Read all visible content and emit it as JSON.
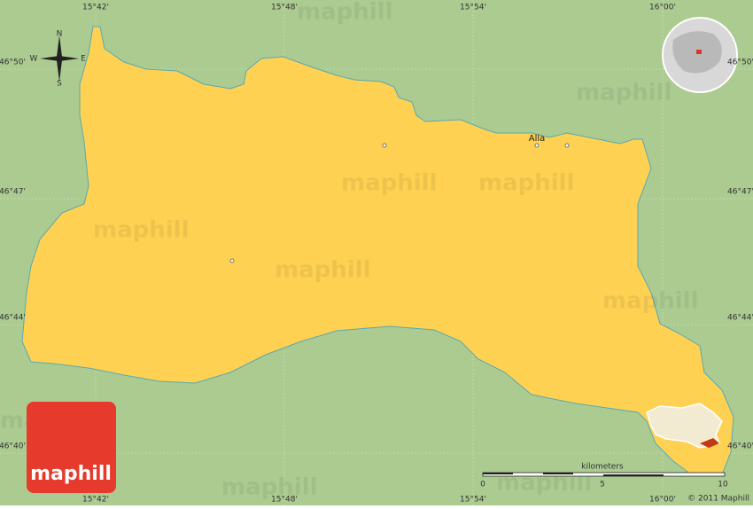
{
  "map": {
    "lon_labels": [
      "15°42'",
      "15°48'",
      "15°54'",
      "16°00'"
    ],
    "lat_labels": [
      "46°50'",
      "46°47'",
      "46°44'",
      "46°40'"
    ],
    "compass": {
      "n": "N",
      "s": "S",
      "e": "E",
      "w": "W"
    },
    "places": [
      {
        "label": "Alla"
      }
    ],
    "scale": {
      "unit": "kilometers",
      "ticks": [
        0,
        5,
        10
      ]
    },
    "copyright": "© 2011 Maphill",
    "logo": "maphill",
    "watermark": "maphill"
  }
}
